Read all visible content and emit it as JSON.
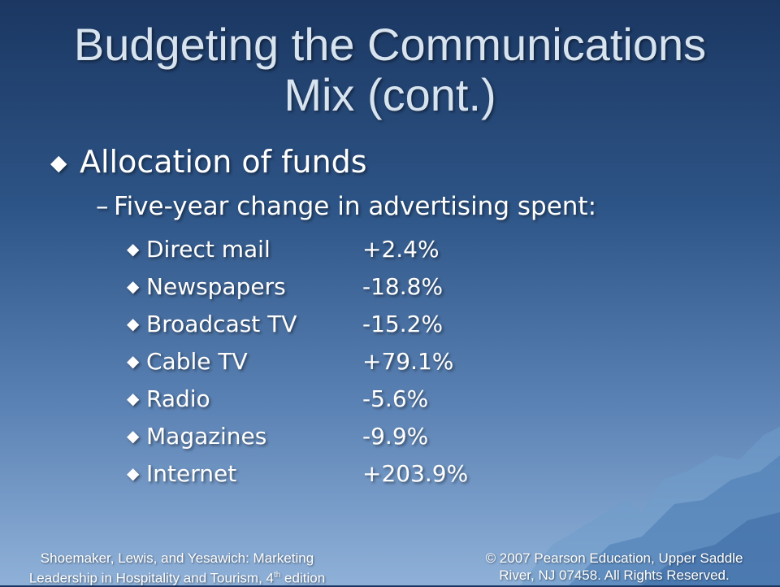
{
  "slide": {
    "title_line1": "Budgeting the Communications",
    "title_line2": "Mix (cont.)",
    "level1": "Allocation of funds",
    "level2": "Five-year change in advertising spent:",
    "items": [
      {
        "name": "Direct mail",
        "value": "+2.4%"
      },
      {
        "name": "Newspapers",
        "value": "-18.8%"
      },
      {
        "name": "Broadcast TV",
        "value": "-15.2%"
      },
      {
        "name": "Cable TV",
        "value": "+79.1%"
      },
      {
        "name": "Radio",
        "value": "-5.6%"
      },
      {
        "name": "Magazines",
        "value": "-9.9%"
      },
      {
        "name": "Internet",
        "value": "+203.9%"
      }
    ]
  },
  "footer": {
    "left_line1": "Shoemaker, Lewis, and Yesawich: Marketing",
    "left_line2a": "Leadership in Hospitality and Tourism, 4",
    "left_sup": "th",
    "left_line2b": " edition",
    "right_line1": "© 2007 Pearson Education, Upper Saddle",
    "right_line2": "River, NJ 07458. All Rights Reserved."
  },
  "colors": {
    "background_top": "#1b3762",
    "background_bottom": "#8fb1d8",
    "title": "#d7e3ef",
    "text": "#ffffff"
  }
}
